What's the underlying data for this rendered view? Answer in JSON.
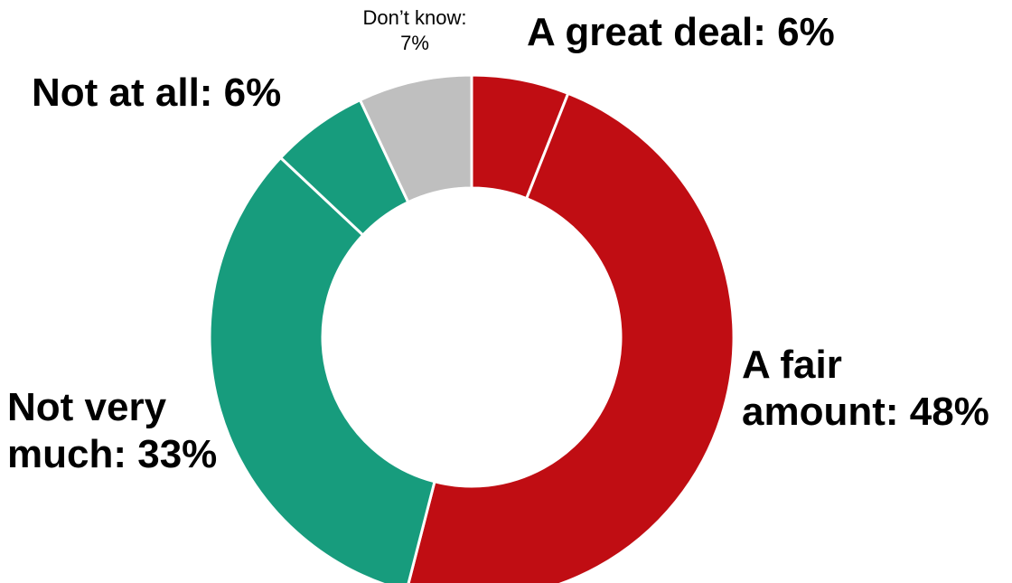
{
  "chart_data": {
    "type": "pie",
    "variant": "donut",
    "title": "",
    "slices": [
      {
        "label_lines": [
          "A great deal: 6%"
        ],
        "label": "A great deal",
        "value": 6,
        "color": "#c00d13"
      },
      {
        "label_lines": [
          "A fair",
          "amount: 48%"
        ],
        "label": "A fair amount",
        "value": 48,
        "color": "#c00d13"
      },
      {
        "label_lines": [
          "Not very",
          "much: 33%"
        ],
        "label": "Not very much",
        "value": 33,
        "color": "#179c7d"
      },
      {
        "label_lines": [
          "Not at all: 6%"
        ],
        "label": "Not at all",
        "value": 6,
        "color": "#179c7d"
      },
      {
        "label_lines": [
          "Don’t know:",
          "7%"
        ],
        "label": "Don’t know",
        "value": 7,
        "color": "#bfbfbf"
      }
    ],
    "legend": "none",
    "start_angle": "12 o'clock",
    "direction": "clockwise"
  }
}
